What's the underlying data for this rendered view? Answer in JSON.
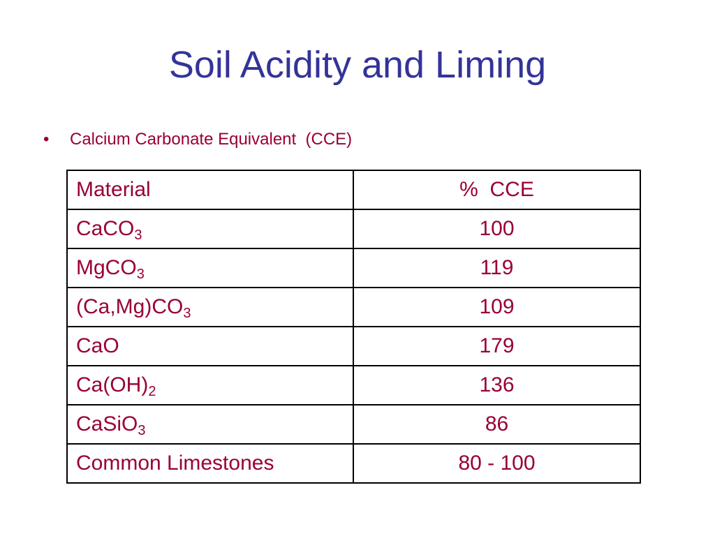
{
  "header": {
    "title": "Soil Acidity and Liming"
  },
  "bullets": [
    "Calcium Carbonate Equivalent  (CCE)"
  ],
  "table": {
    "columns": [
      "Material",
      "%  CCE"
    ],
    "rows": [
      [
        {
          "base": "CaCO",
          "sub": "3"
        },
        100
      ],
      [
        {
          "base": "MgCO",
          "sub": "3"
        },
        119
      ],
      [
        {
          "base": "(Ca,Mg)CO",
          "sub": "3"
        },
        109
      ],
      [
        {
          "base": "CaO"
        },
        179
      ],
      [
        {
          "base": "Ca(OH)",
          "sub": "2"
        },
        136
      ],
      [
        {
          "base": "CaSiO",
          "sub": "3"
        },
        86
      ],
      [
        {
          "base": "Common Limestones"
        },
        "80 - 100"
      ]
    ]
  }
}
